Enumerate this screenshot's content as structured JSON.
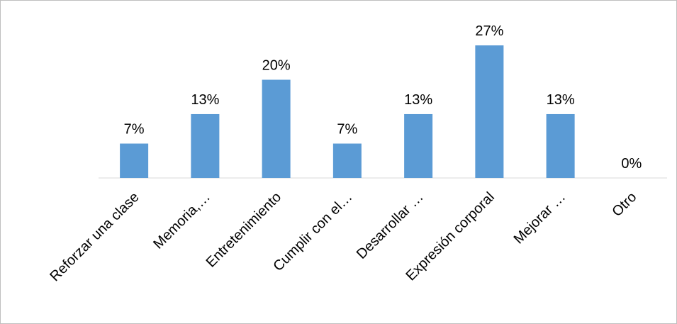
{
  "chart_data": {
    "type": "bar",
    "title": "",
    "xlabel": "",
    "ylabel": "",
    "categories": [
      "Reforzar una clase",
      "Memoria,…",
      "Entretenimiento",
      "Cumplir con el…",
      "Desarrollar …",
      "Expresión corporal",
      "Mejorar …",
      "Otro"
    ],
    "values": [
      7,
      13,
      20,
      7,
      13,
      27,
      13,
      0
    ],
    "value_labels": [
      "7%",
      "13%",
      "20%",
      "7%",
      "13%",
      "27%",
      "13%",
      "0%"
    ],
    "value_unit": "%",
    "ylim": [
      0,
      27
    ],
    "grid": false,
    "legend": "none",
    "bar_color": "#5b9bd5"
  }
}
